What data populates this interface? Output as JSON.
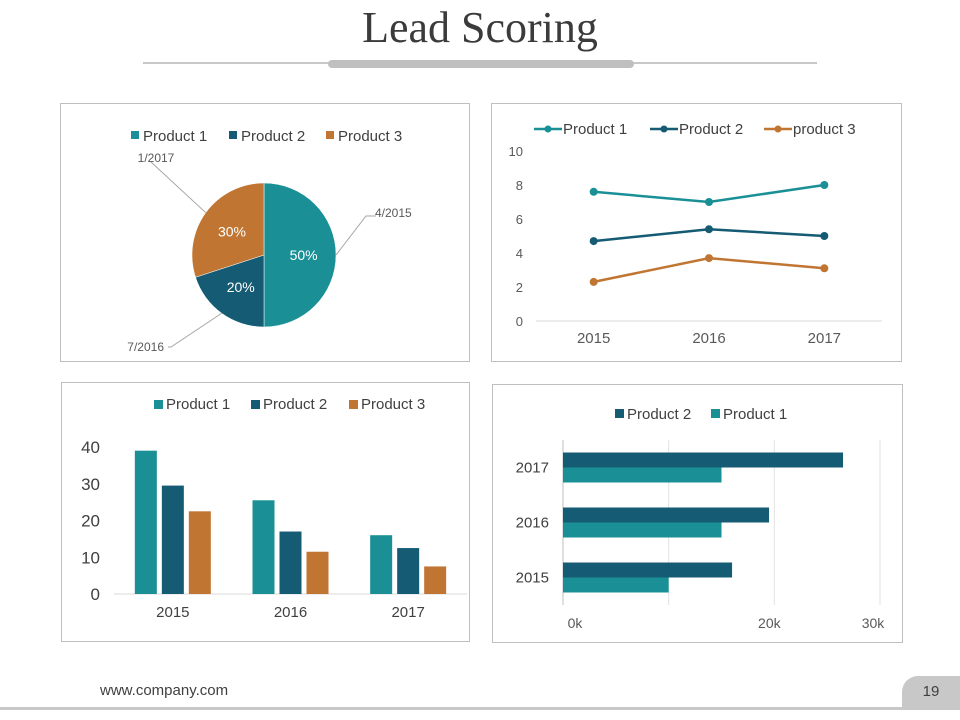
{
  "slide": {
    "title": "Lead Scoring",
    "footer_url": "www.company.com",
    "page_number": "19"
  },
  "colors": {
    "product1": "#1a9096",
    "product2": "#145b73",
    "product3": "#c07632"
  },
  "chart_data": [
    {
      "type": "pie",
      "legend": [
        "Product 1",
        "Product 2",
        "Product 3"
      ],
      "slices": [
        {
          "name": "Product 1",
          "value": 50,
          "label": "50%",
          "callout": "4/2015"
        },
        {
          "name": "Product 2",
          "value": 20,
          "label": "20%",
          "callout": "7/2016"
        },
        {
          "name": "Product 3",
          "value": 30,
          "label": "30%",
          "callout": "1/2017"
        }
      ]
    },
    {
      "type": "line",
      "categories": [
        "2015",
        "2016",
        "2017"
      ],
      "ylim": [
        0,
        10
      ],
      "yticks": [
        "0",
        "2",
        "4",
        "6",
        "8",
        "10"
      ],
      "series": [
        {
          "name": "Product 1",
          "values": [
            7.6,
            7.0,
            8.0
          ]
        },
        {
          "name": "Product 2",
          "values": [
            4.7,
            5.4,
            5.0
          ]
        },
        {
          "name": "product 3",
          "values": [
            2.3,
            3.7,
            3.1
          ]
        }
      ]
    },
    {
      "type": "bar",
      "categories": [
        "2015",
        "2016",
        "2017"
      ],
      "ylim": [
        0,
        40
      ],
      "yticks": [
        "0",
        "10",
        "20",
        "30",
        "40"
      ],
      "series": [
        {
          "name": "Product 1",
          "values": [
            39,
            25.5,
            16
          ]
        },
        {
          "name": "Product 2",
          "values": [
            29.5,
            17,
            12.5
          ]
        },
        {
          "name": "Product 3",
          "values": [
            22.5,
            11.5,
            7.5
          ]
        }
      ]
    },
    {
      "type": "bar",
      "orientation": "horizontal",
      "categories": [
        "2015",
        "2016",
        "2017"
      ],
      "xlim": [
        0,
        30000
      ],
      "xticks": [
        "0k",
        "20k",
        "30k"
      ],
      "series": [
        {
          "name": "Product 2",
          "values": [
            16000,
            19500,
            26500
          ]
        },
        {
          "name": "Product 1",
          "values": [
            10000,
            15000,
            15000
          ]
        }
      ]
    }
  ]
}
